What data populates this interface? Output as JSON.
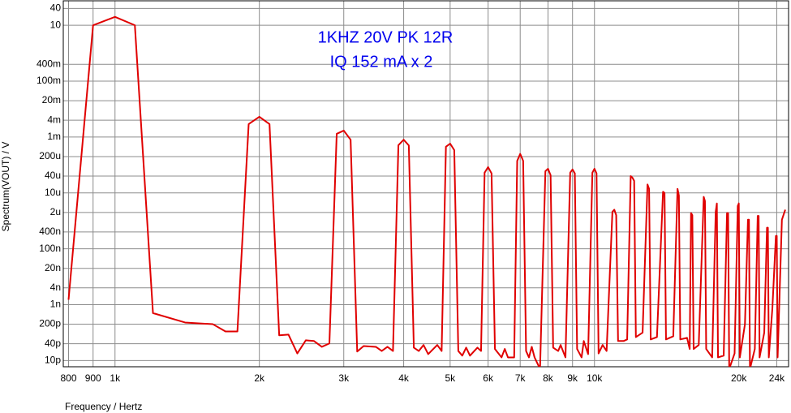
{
  "chart_data": {
    "type": "line",
    "annotations": [
      "1KHZ 20V PK 12R",
      "IQ 152 mA x 2"
    ],
    "x_label": "Frequency / Hertz",
    "y_label": "Spectrum(VOUT) / V",
    "xlog": true,
    "ylog": true,
    "grid": true,
    "color": "#e00000",
    "xlim": [
      780,
      25400
    ],
    "ylim": [
      6e-12,
      75
    ],
    "xticks": [
      800,
      900,
      {
        "value": 1000,
        "label": "1k"
      },
      {
        "value": 2000,
        "label": "2k"
      },
      {
        "value": 3000,
        "label": "3k"
      },
      {
        "value": 4000,
        "label": "4k"
      },
      {
        "value": 5000,
        "label": "5k"
      },
      {
        "value": 6000,
        "label": "6k"
      },
      {
        "value": 7000,
        "label": "7k"
      },
      {
        "value": 8000,
        "label": "8k"
      },
      {
        "value": 9000,
        "label": "9k"
      },
      {
        "value": 10000,
        "label": "10k"
      },
      {
        "value": 20000,
        "label": "20k"
      },
      {
        "value": 24000,
        "label": "24k"
      }
    ],
    "yticks": [
      40,
      10,
      {
        "value": 0.4,
        "label": "400m"
      },
      {
        "value": 0.1,
        "label": "100m"
      },
      {
        "value": 0.02,
        "label": "20m"
      },
      {
        "value": 0.004,
        "label": "4m"
      },
      {
        "value": 0.001,
        "label": "1m"
      },
      {
        "value": 0.0002,
        "label": "200u"
      },
      {
        "value": 4e-05,
        "label": "40u"
      },
      {
        "value": 1e-05,
        "label": "10u"
      },
      {
        "value": 2e-06,
        "label": "2u"
      },
      {
        "value": 4e-07,
        "label": "400n"
      },
      {
        "value": 1e-07,
        "label": "100n"
      },
      {
        "value": 2e-08,
        "label": "20n"
      },
      {
        "value": 4e-09,
        "label": "4n"
      },
      {
        "value": 1e-09,
        "label": "1n"
      },
      {
        "value": 2e-10,
        "label": "200p"
      },
      {
        "value": 4e-11,
        "label": "40p"
      },
      {
        "value": 1e-11,
        "label": "10p"
      }
    ],
    "x": [
      800,
      900,
      1000,
      1100,
      1200,
      1400,
      1600,
      1700,
      1800,
      1900,
      2000,
      2100,
      2200,
      2300,
      2400,
      2500,
      2600,
      2700,
      2800,
      2900,
      3000,
      3100,
      3200,
      3300,
      3500,
      3600,
      3700,
      3800,
      3900,
      4000,
      4100,
      4200,
      4300,
      4400,
      4500,
      4700,
      4800,
      4900,
      5000,
      5100,
      5200,
      5300,
      5400,
      5500,
      5700,
      5800,
      5900,
      6000,
      6100,
      6200,
      6400,
      6500,
      6600,
      6800,
      6900,
      7000,
      7100,
      7200,
      7300,
      7400,
      7500,
      7700,
      7900,
      8000,
      8100,
      8200,
      8400,
      8500,
      8700,
      8900,
      9000,
      9100,
      9200,
      9400,
      9500,
      9700,
      9900,
      10000,
      10100,
      10200,
      10400,
      10600,
      10900,
      11000,
      11100,
      11200,
      11500,
      11700,
      11900,
      12000,
      12100,
      12200,
      12600,
      12900,
      13000,
      13100,
      13500,
      13900,
      14000,
      14100,
      14600,
      14900,
      15000,
      15100,
      15600,
      15800,
      15900,
      16000,
      16100,
      16500,
      16900,
      17000,
      17100,
      17600,
      17900,
      18000,
      18100,
      18600,
      18900,
      19000,
      19100,
      19600,
      19900,
      20000,
      20100,
      20600,
      20900,
      21000,
      21100,
      21600,
      21900,
      22000,
      22100,
      22600,
      22900,
      23000,
      23100,
      23500,
      23900,
      24000,
      24100,
      24600,
      25000
    ],
    "values": [
      1.5e-09,
      10,
      20,
      10,
      5e-10,
      2.3e-10,
      2e-10,
      1.1e-10,
      1.1e-10,
      0.0029,
      0.0053,
      0.0029,
      8e-11,
      8.5e-11,
      1.8e-11,
      5.3e-11,
      5e-11,
      3.1e-11,
      4.1e-11,
      0.0013,
      0.0017,
      0.0008,
      2.1e-11,
      3.3e-11,
      3.1e-11,
      2.2e-11,
      3.1e-11,
      2.2e-11,
      0.00051,
      0.0008,
      0.0005,
      2.9e-11,
      2.2e-11,
      3.6e-11,
      1.7e-11,
      3.6e-11,
      2.2e-11,
      0.00045,
      0.00058,
      0.00034,
      2.2e-11,
      1.5e-11,
      2.9e-11,
      1.5e-11,
      2.9e-11,
      2.2e-11,
      5.3e-05,
      8.4e-05,
      5e-05,
      2.6e-11,
      1.3e-11,
      2.6e-11,
      1.3e-11,
      1.3e-11,
      0.00014,
      0.00025,
      0.00014,
      2.2e-11,
      1.3e-11,
      3.1e-11,
      1.3e-11,
      5e-12,
      6e-05,
      7.3e-05,
      4.3e-05,
      2.9e-11,
      2.2e-11,
      3.6e-11,
      1.3e-11,
      5.3e-05,
      6.9e-05,
      5e-05,
      2.6e-11,
      1.3e-11,
      5e-11,
      1.7e-11,
      5.3e-05,
      7.3e-05,
      5e-05,
      1.8e-11,
      3.6e-11,
      2.2e-11,
      2.1e-06,
      2.5e-06,
      1.6e-06,
      5e-11,
      5e-11,
      5.7e-11,
      4e-05,
      3.5e-05,
      2.7e-05,
      6.9e-11,
      1e-10,
      2e-05,
      1.4e-05,
      5.7e-11,
      6.9e-11,
      1.1e-05,
      1e-05,
      5.7e-11,
      7.4e-11,
      1.4e-05,
      8.1e-06,
      5.7e-11,
      6.5e-11,
      2.6e-11,
      1.9e-06,
      1.6e-06,
      2.6e-11,
      3.6e-11,
      7.2e-06,
      5.1e-06,
      2.6e-11,
      1.3e-11,
      2.1e-06,
      4.2e-06,
      1.3e-11,
      1.5e-11,
      1.9e-06,
      1.9e-06,
      5e-12,
      1.8e-11,
      3.4e-06,
      4.2e-06,
      1.3e-11,
      2e-10,
      1.1e-06,
      1.1e-06,
      5e-12,
      2.6e-11,
      1.5e-06,
      1.5e-06,
      1.3e-11,
      1e-10,
      5.7e-07,
      5.7e-07,
      1.3e-11,
      7.5e-10,
      2.9e-07,
      2.9e-07,
      1.3e-11,
      1.1e-06,
      2.5e-06
    ]
  }
}
